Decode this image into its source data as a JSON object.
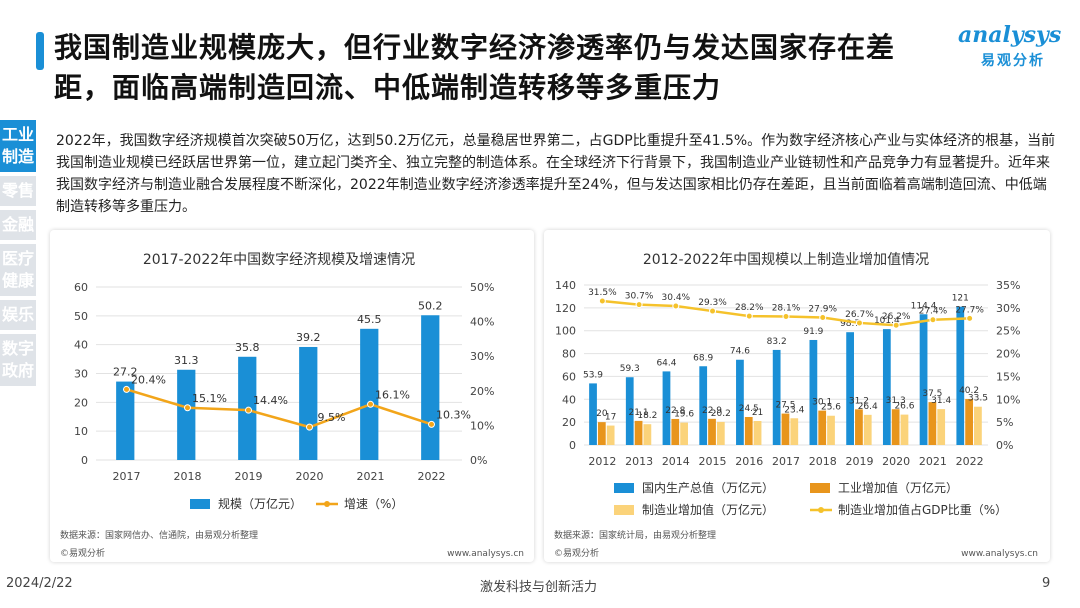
{
  "title": "我国制造业规模庞大，但行业数字经济渗透率仍与发达国家存在差距，面临高端制造回流、中低端制造转移等多重压力",
  "logo": {
    "word": "analysys",
    "sub": "易观分析"
  },
  "sidebar": [
    "工业制造",
    "零售",
    "金融",
    "医疗健康",
    "娱乐",
    "数字政府"
  ],
  "intro": "2022年，我国数字经济规模首次突破50万亿，达到50.2万亿元，总量稳居世界第二，占GDP比重提升至41.5%。作为数字经济核心产业与实体经济的根基，当前我国制造业规模已经跃居世界第一位，建立起门类齐全、独立完整的制造体系。在全球经济下行背景下，我国制造业产业链韧性和产品竞争力有显著提升。近年来我国数字经济与制造业融合发展程度不断深化，2022年制造业数字经济渗透率提升至24%，但与发达国家相比仍存在差距，且当前面临着高端制造回流、中低端制造转移等多重压力。",
  "footer": {
    "date": "2024/2/22",
    "middle": "激发科技与创新活力",
    "page": "9"
  },
  "chart_data": [
    {
      "type": "bar",
      "title": "2017-2022年中国数字经济规模及增速情况",
      "categories": [
        "2017",
        "2018",
        "2019",
        "2020",
        "2021",
        "2022"
      ],
      "series": [
        {
          "name": "规模（万亿元）",
          "kind": "bar",
          "axis": "left",
          "color": "#1a8fd6",
          "values": [
            27.2,
            31.3,
            35.8,
            39.2,
            45.5,
            50.2
          ],
          "labels": [
            "27.2",
            "31.3",
            "35.8",
            "39.2",
            "45.5",
            "50.2"
          ]
        },
        {
          "name": "增速（%）",
          "kind": "line",
          "axis": "right",
          "color": "#f2a51a",
          "values": [
            20.4,
            15.1,
            14.4,
            9.5,
            16.1,
            10.3
          ],
          "labels": [
            "20.4%",
            "15.1%",
            "14.4%",
            "9.5%",
            "16.1%",
            "10.3%"
          ]
        }
      ],
      "y_left": {
        "min": 0,
        "max": 60,
        "ticks": [
          "0",
          "10",
          "20",
          "30",
          "40",
          "50",
          "60"
        ]
      },
      "y_right": {
        "min": 0,
        "max": 50,
        "ticks": [
          "0%",
          "10%",
          "20%",
          "30%",
          "40%",
          "50%"
        ]
      },
      "source": "数据来源：国家网信办、信通院，由易观分析整理",
      "brand": "©易观分析",
      "url": "www.analysys.cn"
    },
    {
      "type": "bar",
      "title": "2012-2022年中国规模以上制造业增加值情况",
      "categories": [
        "2012",
        "2013",
        "2014",
        "2015",
        "2016",
        "2017",
        "2018",
        "2019",
        "2020",
        "2021",
        "2022"
      ],
      "series": [
        {
          "name": "国内生产总值（万亿元）",
          "kind": "bar",
          "axis": "left",
          "color": "#1a8fd6",
          "values": [
            53.9,
            59.3,
            64.4,
            68.9,
            74.6,
            83.2,
            91.9,
            98.7,
            101.4,
            114.4,
            121
          ],
          "labels": [
            "53.9",
            "59.3",
            "64.4",
            "68.9",
            "74.6",
            "83.2",
            "91.9",
            "98.7",
            "101.4",
            "114.4",
            "121"
          ]
        },
        {
          "name": "工业增加值（万亿元）",
          "kind": "bar",
          "axis": "left",
          "color": "#e8951c",
          "values": [
            20,
            21.1,
            22.8,
            22.9,
            24.5,
            27.5,
            30.1,
            31.2,
            31.3,
            37.5,
            40.2
          ],
          "labels": [
            "20",
            "21.1",
            "22.8",
            "22.9",
            "24.5",
            "27.5",
            "30.1",
            "31.2",
            "31.3",
            "37.5",
            "40.2"
          ]
        },
        {
          "name": "制造业增加值（万亿元）",
          "kind": "bar",
          "axis": "left",
          "color": "#fbd37a",
          "values": [
            17,
            18.2,
            19.6,
            20.2,
            21,
            23.4,
            25.6,
            26.4,
            26.6,
            31.4,
            33.5
          ],
          "labels": [
            "17",
            "18.2",
            "19.6",
            "20.2",
            "21",
            "23.4",
            "25.6",
            "26.4",
            "26.6",
            "31.4",
            "33.5"
          ]
        },
        {
          "name": "制造业增加值占GDP比重（%）",
          "kind": "line",
          "axis": "right",
          "color": "#f5c22b",
          "values": [
            31.5,
            30.7,
            30.4,
            29.3,
            28.2,
            28.1,
            27.9,
            26.7,
            26.2,
            27.4,
            27.7
          ],
          "labels": [
            "31.5%",
            "30.7%",
            "30.4%",
            "29.3%",
            "28.2%",
            "28.1%",
            "27.9%",
            "26.7%",
            "26.2%",
            "27.4%",
            "27.7%"
          ]
        }
      ],
      "y_left": {
        "min": 0,
        "max": 140,
        "ticks": [
          "0",
          "20",
          "40",
          "60",
          "80",
          "100",
          "120",
          "140"
        ]
      },
      "y_right": {
        "min": 0,
        "max": 35,
        "ticks": [
          "0%",
          "5%",
          "10%",
          "15%",
          "20%",
          "25%",
          "30%",
          "35%"
        ]
      },
      "source": "数据来源：国家统计局，由易观分析整理",
      "brand": "©易观分析",
      "url": "www.analysys.cn"
    }
  ]
}
